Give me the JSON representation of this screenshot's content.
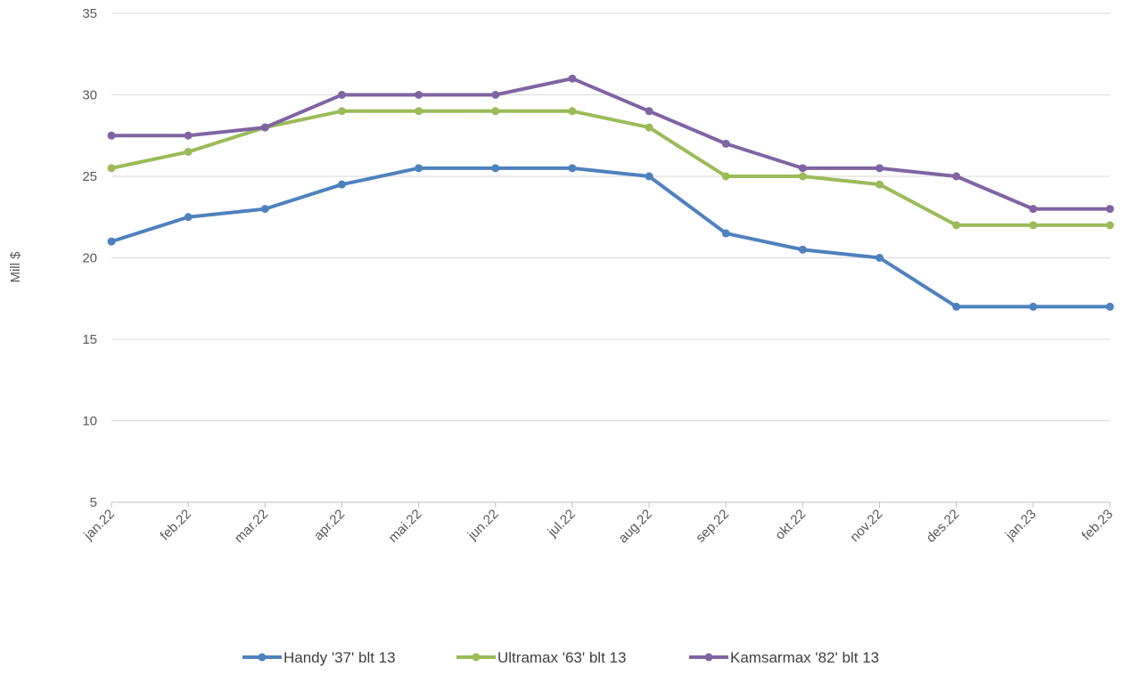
{
  "chart_data": {
    "type": "line",
    "title": "",
    "xlabel": "",
    "ylabel": "Mill $",
    "ylim": [
      5,
      35
    ],
    "yticks": [
      5,
      10,
      15,
      20,
      25,
      30,
      35
    ],
    "grid": true,
    "legend_position": "bottom",
    "categories": [
      "jan.22",
      "feb.22",
      "mar.22",
      "apr.22",
      "mai.22",
      "jun.22",
      "jul.22",
      "aug.22",
      "sep.22",
      "okt.22",
      "nov.22",
      "des.22",
      "jan.23",
      "feb.23"
    ],
    "series": [
      {
        "name": "Handy '37' blt 13",
        "color": "#4f81bd",
        "values": [
          21,
          22.5,
          23,
          24.5,
          25.5,
          25.5,
          25.5,
          25,
          21.5,
          20.5,
          20,
          17,
          17,
          17
        ]
      },
      {
        "name": "Ultramax '63' blt 13",
        "color": "#9bbb59",
        "values": [
          25.5,
          26.5,
          28,
          29,
          29,
          29,
          29,
          28,
          25,
          25,
          24.5,
          22,
          22,
          22
        ]
      },
      {
        "name": "Kamsarmax '82' blt 13",
        "color": "#8064a2",
        "values": [
          27.5,
          27.5,
          28,
          30,
          30,
          30,
          31,
          29,
          27,
          25.5,
          25.5,
          25,
          23,
          23
        ]
      }
    ]
  }
}
